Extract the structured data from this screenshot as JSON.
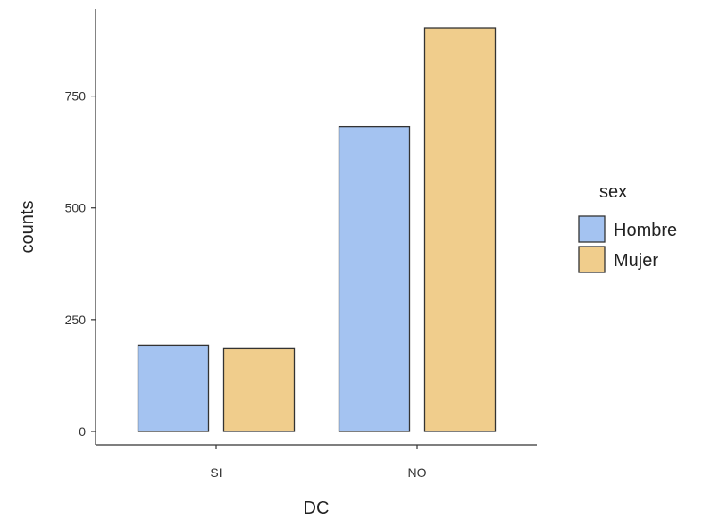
{
  "chart_data": {
    "type": "bar",
    "xlabel": "DC",
    "ylabel": "counts",
    "categories": [
      "SI",
      "NO"
    ],
    "series": [
      {
        "name": "Hombre",
        "values": [
          193,
          682
        ]
      },
      {
        "name": "Mujer",
        "values": [
          185,
          903
        ]
      }
    ],
    "ylim": [
      -30,
      945
    ],
    "yticks": [
      0,
      250,
      500,
      750
    ],
    "yticks_labels": [
      "0",
      "250",
      "500",
      "750"
    ],
    "grid": false,
    "legend": {
      "title": "sex",
      "position": "right"
    },
    "colors": {
      "Hombre": "#A4C3F1",
      "Mujer": "#F0CD8C",
      "border": "#333333",
      "axis": "#333333"
    }
  }
}
